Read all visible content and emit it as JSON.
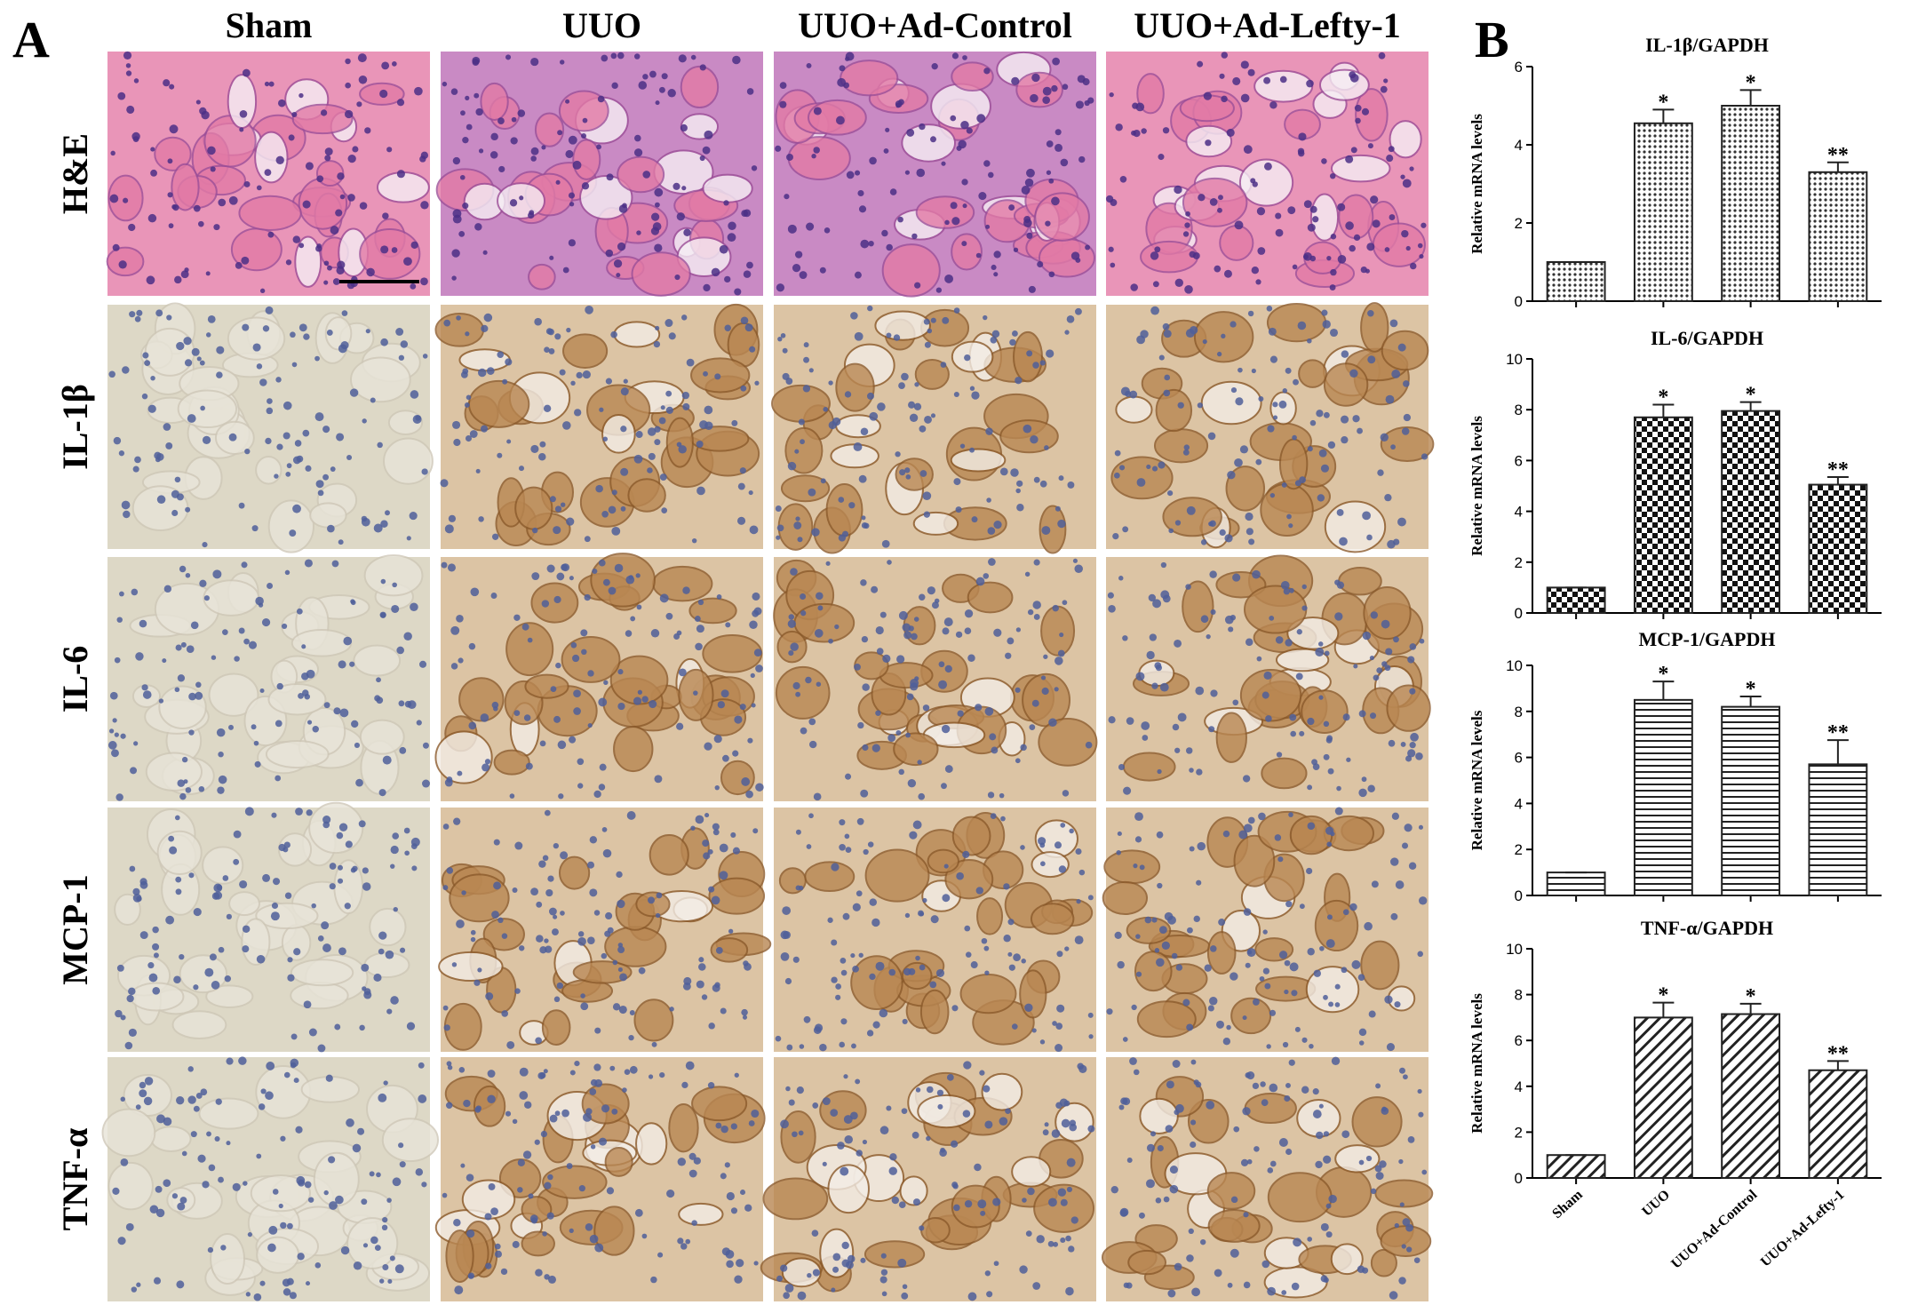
{
  "panel_labels": [
    "A",
    "B"
  ],
  "columns": [
    "Sham",
    "UUO",
    "UUO+Ad-Control",
    "UUO+Ad-Lefty-1"
  ],
  "rows": [
    "H&E",
    "IL-1β",
    "IL-6",
    "MCP-1",
    "TNF-α"
  ],
  "chart_data": [
    {
      "type": "bar",
      "title": "IL-1β/GAPDH",
      "y_label": "Relative mRNA levels",
      "pattern": "dots",
      "color": "#222222",
      "categories": [
        null,
        null,
        null,
        null
      ],
      "values": [
        1,
        4.55,
        5.0,
        3.3
      ],
      "errors": [
        0,
        0.35,
        0.4,
        0.25
      ],
      "annotations": [
        null,
        "*",
        "*",
        "**"
      ],
      "ylim": [
        0,
        6
      ],
      "yticks": [
        0,
        2,
        4,
        6
      ]
    },
    {
      "type": "bar",
      "title": "IL-6/GAPDH",
      "y_label": "Relative mRNA levels",
      "pattern": "checker",
      "color": "#222222",
      "categories": [
        null,
        null,
        null,
        null
      ],
      "values": [
        1,
        7.7,
        7.95,
        5.05
      ],
      "errors": [
        0,
        0.5,
        0.35,
        0.3
      ],
      "annotations": [
        null,
        "*",
        "*",
        "**"
      ],
      "ylim": [
        0,
        10
      ],
      "yticks": [
        0,
        2,
        4,
        6,
        8,
        10
      ]
    },
    {
      "type": "bar",
      "title": "MCP-1/GAPDH",
      "y_label": "Relative mRNA levels",
      "pattern": "horizontal",
      "color": "#222222",
      "categories": [
        null,
        null,
        null,
        null
      ],
      "values": [
        1,
        8.5,
        8.2,
        5.7
      ],
      "errors": [
        0,
        0.8,
        0.45,
        1.05
      ],
      "annotations": [
        null,
        "*",
        "*",
        "**"
      ],
      "ylim": [
        0,
        10
      ],
      "yticks": [
        0,
        2,
        4,
        6,
        8,
        10
      ]
    },
    {
      "type": "bar",
      "title": "TNF-α/GAPDH",
      "y_label": "Relative mRNA levels",
      "pattern": "diagonal",
      "color": "#222222",
      "categories": [
        "Sham",
        "UUO",
        "UUO+Ad-Control",
        "UUO+Ad-Lefty-1"
      ],
      "values": [
        1,
        7.0,
        7.15,
        4.7
      ],
      "errors": [
        0,
        0.65,
        0.45,
        0.4
      ],
      "annotations": [
        null,
        "*",
        "*",
        "**"
      ],
      "ylim": [
        0,
        10
      ],
      "yticks": [
        0,
        2,
        4,
        6,
        8,
        10
      ]
    }
  ]
}
